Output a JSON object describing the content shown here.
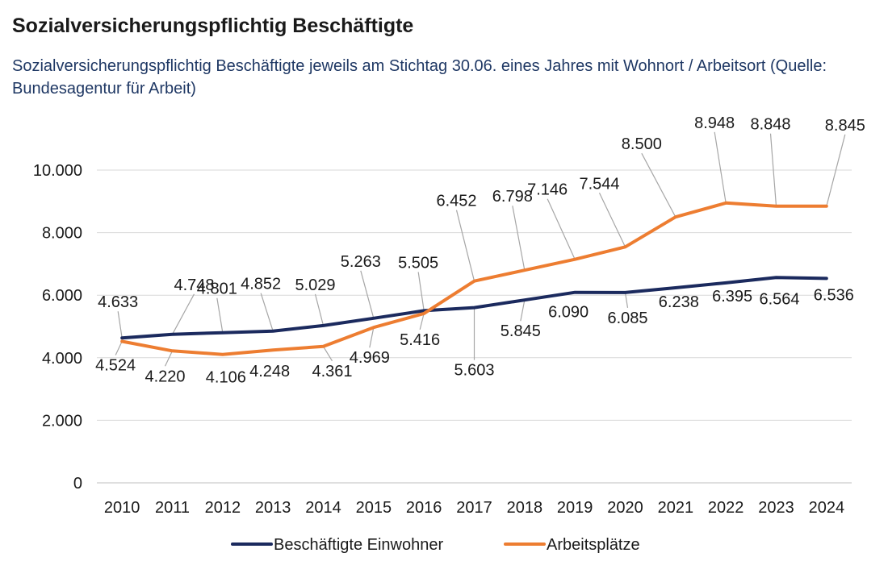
{
  "title": "Sozialversicherungspflichtig Beschäftigte",
  "subtitle": "Sozialversicherungspflichtig Beschäftigte jeweils am Stichtag 30.06. eines Jahres mit Wohnort / Arbeitsort (Quelle: Bundesagentur für Arbeit)",
  "chart_data": {
    "type": "line",
    "x": [
      "2010",
      "2011",
      "2012",
      "2013",
      "2014",
      "2015",
      "2016",
      "2017",
      "2018",
      "2019",
      "2020",
      "2021",
      "2022",
      "2023",
      "2024"
    ],
    "series": [
      {
        "name": "Beschäftigte Einwohner",
        "color": "#1b2a5e",
        "values": [
          4633,
          4748,
          4801,
          4852,
          5029,
          5263,
          5505,
          5603,
          5845,
          6090,
          6085,
          6238,
          6395,
          6564,
          6536
        ],
        "labels": [
          "4.633",
          "4.748",
          "4.801",
          "4.852",
          "5.029",
          "5.263",
          "5.505",
          "5.603",
          "5.845",
          "6.090",
          "6.085",
          "6.238",
          "6.395",
          "6.564",
          "6.536"
        ]
      },
      {
        "name": "Arbeitsplätze",
        "color": "#ed7d31",
        "values": [
          4524,
          4220,
          4106,
          4248,
          4361,
          4969,
          5416,
          6452,
          6798,
          7146,
          7544,
          8500,
          8948,
          8848,
          8845
        ],
        "labels": [
          "4.524",
          "4.220",
          "4.106",
          "4.248",
          "4.361",
          "4.969",
          "5.416",
          "6.452",
          "6.798",
          "7.146",
          "7.544",
          "8.500",
          "8.948",
          "8.848",
          "8.845"
        ]
      }
    ],
    "yticks": [
      0,
      2000,
      4000,
      6000,
      8000,
      10000
    ],
    "ytick_labels": [
      "0",
      "2.000",
      "4.000",
      "6.000",
      "8.000",
      "10.000"
    ],
    "ylim": [
      0,
      10000
    ],
    "grid": true,
    "legend": "bottom"
  }
}
